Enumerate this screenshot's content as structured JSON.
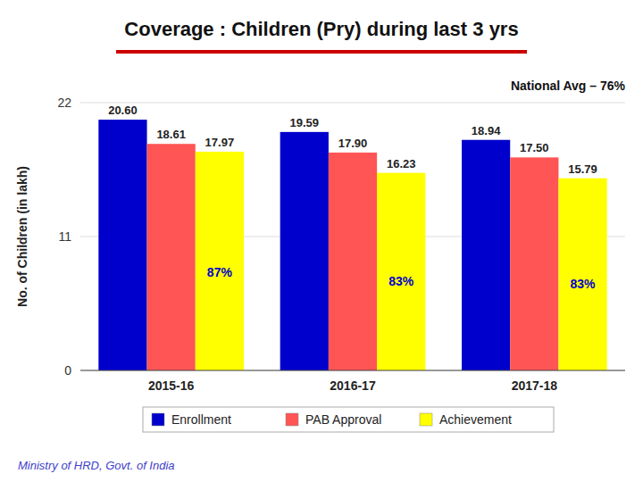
{
  "chart_data": {
    "type": "bar",
    "title": "Coverage : Children (Pry) during last 3 yrs",
    "ylabel": "No. of Children (in lakh)",
    "categories": [
      "2015-16",
      "2016-17",
      "2017-18"
    ],
    "series": [
      {
        "name": "Enrollment",
        "color": "#0000CC",
        "values": [
          20.6,
          19.59,
          18.94
        ],
        "value_labels": [
          "20.60",
          "19.59",
          "18.94"
        ]
      },
      {
        "name": "PAB Approval",
        "color": "#FF5555",
        "values": [
          18.61,
          17.9,
          17.5
        ],
        "value_labels": [
          "18.61",
          "17.90",
          "17.50"
        ]
      },
      {
        "name": "Achievement",
        "color": "#FFFF00",
        "values": [
          17.97,
          16.23,
          15.79
        ],
        "value_labels": [
          "17.97",
          "16.23",
          "15.79"
        ],
        "shares": [
          87,
          83,
          83
        ],
        "share_labels": [
          "87%",
          "83%",
          "83%"
        ]
      }
    ],
    "ylim": [
      0,
      22
    ],
    "yticks": [
      0,
      11,
      22
    ],
    "grid": true,
    "legend": "bottom",
    "data_labels": true,
    "annotations": [
      "National Avg – 76%",
      "Ministry of HRD, Govt. of India"
    ]
  }
}
